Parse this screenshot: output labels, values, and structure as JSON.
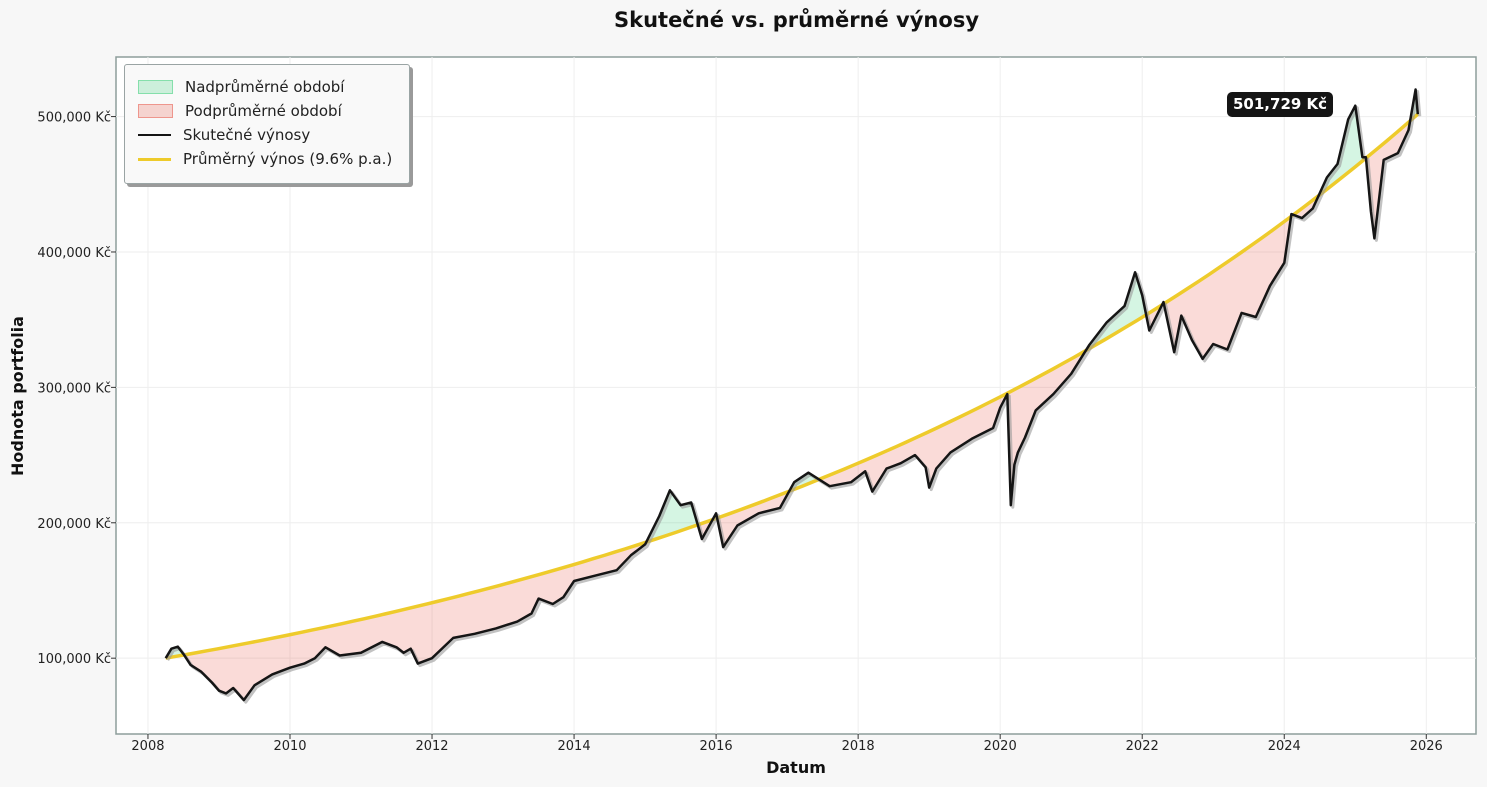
{
  "chart_data": {
    "type": "line",
    "title": "Skutečné vs. průměrné výnosy",
    "xlabel": "Datum",
    "ylabel": "Hodnota portfolia",
    "xlim": [
      2007.55,
      2026.7
    ],
    "ylim": [
      44000,
      544000
    ],
    "x_ticks": [
      2008,
      2010,
      2012,
      2014,
      2016,
      2018,
      2020,
      2022,
      2024,
      2026
    ],
    "x_tick_labels": [
      "2008",
      "2010",
      "2012",
      "2014",
      "2016",
      "2018",
      "2020",
      "2022",
      "2024",
      "2026"
    ],
    "y_ticks": [
      100000,
      200000,
      300000,
      400000,
      500000
    ],
    "y_tick_labels": [
      "100,000 Kč",
      "200,000 Kč",
      "300,000 Kč",
      "400,000 Kč",
      "500,000 Kč"
    ],
    "grid": true,
    "legend_location": "upper-left",
    "series": [
      {
        "name": "Skutečné výnosy",
        "color": "#151515",
        "x": [
          2008.25,
          2008.33,
          2008.42,
          2008.5,
          2008.6,
          2008.75,
          2008.9,
          2009.0,
          2009.1,
          2009.2,
          2009.35,
          2009.5,
          2009.75,
          2010.0,
          2010.2,
          2010.35,
          2010.5,
          2010.7,
          2011.0,
          2011.3,
          2011.5,
          2011.6,
          2011.7,
          2011.8,
          2012.0,
          2012.3,
          2012.6,
          2012.9,
          2013.2,
          2013.4,
          2013.5,
          2013.7,
          2013.85,
          2014.0,
          2014.3,
          2014.6,
          2014.8,
          2015.0,
          2015.2,
          2015.35,
          2015.5,
          2015.65,
          2015.8,
          2016.0,
          2016.1,
          2016.3,
          2016.6,
          2016.9,
          2017.1,
          2017.3,
          2017.6,
          2017.9,
          2018.1,
          2018.2,
          2018.4,
          2018.6,
          2018.8,
          2018.95,
          2019.0,
          2019.1,
          2019.3,
          2019.6,
          2019.9,
          2020.0,
          2020.1,
          2020.15,
          2020.2,
          2020.25,
          2020.35,
          2020.5,
          2020.75,
          2021.0,
          2021.25,
          2021.5,
          2021.75,
          2021.9,
          2022.0,
          2022.1,
          2022.3,
          2022.45,
          2022.55,
          2022.7,
          2022.85,
          2023.0,
          2023.2,
          2023.4,
          2023.6,
          2023.8,
          2024.0,
          2024.1,
          2024.25,
          2024.4,
          2024.6,
          2024.75,
          2024.9,
          2025.0,
          2025.1,
          2025.15,
          2025.22,
          2025.27,
          2025.4,
          2025.6,
          2025.75,
          2025.85,
          2025.88
        ],
        "values": [
          100000,
          107000,
          108500,
          103000,
          95000,
          90000,
          82000,
          76000,
          74000,
          78000,
          69000,
          80000,
          88000,
          93000,
          96000,
          100000,
          108000,
          102000,
          104000,
          112000,
          108000,
          104000,
          107000,
          96000,
          100000,
          115000,
          118000,
          122000,
          127000,
          133000,
          144000,
          140000,
          145000,
          157000,
          161000,
          165000,
          176000,
          184000,
          205000,
          224000,
          213000,
          215000,
          188000,
          207000,
          182000,
          198000,
          207000,
          211000,
          230000,
          237000,
          227000,
          230000,
          238000,
          223000,
          240000,
          244000,
          250000,
          241000,
          226000,
          240000,
          252000,
          262000,
          270000,
          285000,
          295000,
          213000,
          243000,
          252000,
          263000,
          283000,
          295000,
          310000,
          331000,
          348000,
          360000,
          385000,
          368000,
          342000,
          363000,
          326000,
          353000,
          335000,
          321000,
          332000,
          328000,
          355000,
          352000,
          375000,
          392000,
          428000,
          425000,
          432000,
          455000,
          465000,
          498000,
          508000,
          470000,
          470000,
          430000,
          410000,
          468000,
          473000,
          490000,
          520000,
          501729
        ]
      },
      {
        "name": "Průměrný výnos (9.6% p.a.)",
        "color": "#eecb2b",
        "start_x": 2008.25,
        "start_value": 100000,
        "end_x": 2025.88,
        "end_value": 501729,
        "annual_rate_pct": 9.6
      }
    ],
    "fill_regions": [
      {
        "name": "Nadprůměrné období",
        "color": "#2ecc71",
        "opacity": 0.2
      },
      {
        "name": "Podprůměrné období",
        "color": "#e74c3c",
        "opacity": 0.2
      }
    ],
    "annotation": {
      "text": "501,729 Kč",
      "x": 2025.88,
      "y": 501729
    }
  },
  "legend": {
    "items": [
      {
        "label": "Nadprůměrné období",
        "kind": "patch",
        "color": "#2ecc71"
      },
      {
        "label": "Podprůměrné období",
        "kind": "patch",
        "color": "#e74c3c"
      },
      {
        "label": "Skutečné výnosy",
        "kind": "line",
        "color": "#151515"
      },
      {
        "label": "Průměrný výnos (9.6% p.a.)",
        "kind": "line",
        "color": "#eecb2b"
      }
    ]
  }
}
